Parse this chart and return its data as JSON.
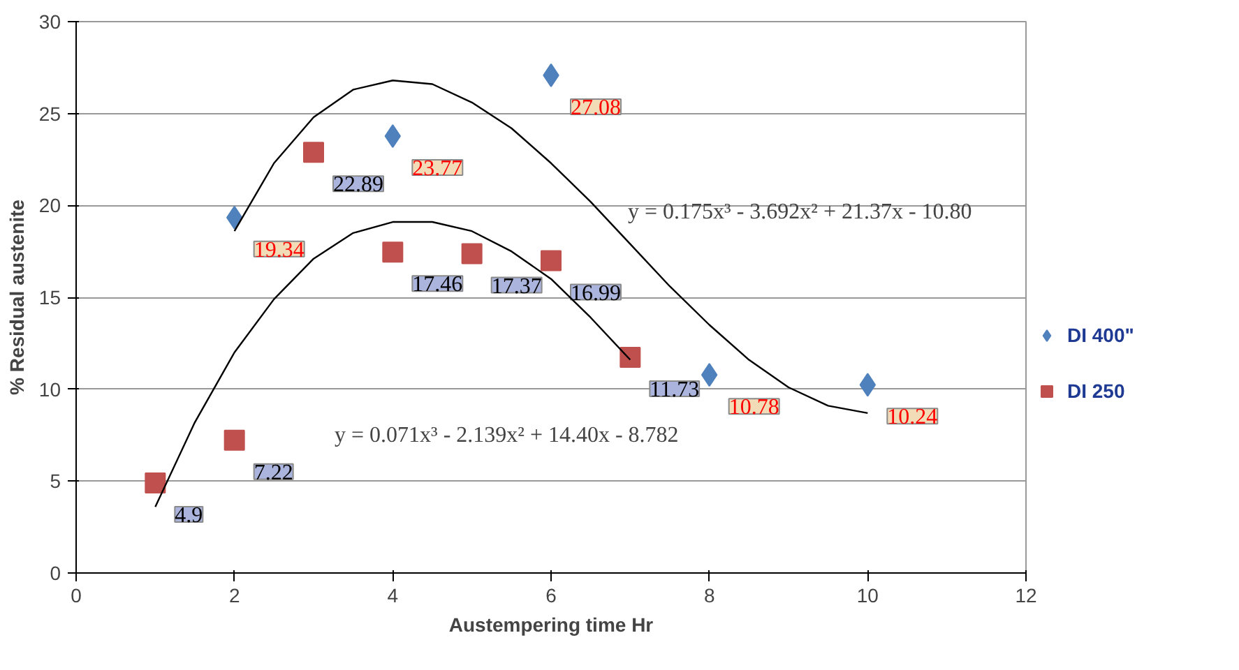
{
  "chart_data": {
    "type": "scatter",
    "xlabel": "Austempering time Hr",
    "ylabel": "% Residual austenite",
    "xlim": [
      0,
      12
    ],
    "xticks": [
      0,
      2,
      4,
      6,
      8,
      10,
      12
    ],
    "ylim": [
      0,
      30
    ],
    "yticks": [
      0,
      5,
      10,
      15,
      20,
      25,
      30
    ],
    "grid": "y",
    "legend": "right",
    "series": [
      {
        "name": "DI 400\"",
        "color": "#4f81bd",
        "marker": "diamond",
        "x": [
          2,
          4,
          6,
          8,
          10
        ],
        "values": [
          19.34,
          23.77,
          27.08,
          10.78,
          10.24
        ],
        "value_labels": [
          "19.34",
          "23.77",
          "27.08",
          "10.78",
          "10.24"
        ]
      },
      {
        "name": "DI 250",
        "color": "#c0504d",
        "marker": "square",
        "x": [
          1,
          2,
          3,
          4,
          5,
          6,
          7
        ],
        "values": [
          4.9,
          7.22,
          22.89,
          17.46,
          17.37,
          16.99,
          11.73
        ],
        "value_labels": [
          "4.9",
          "7.22",
          "22.89",
          "17.46",
          "17.37",
          "16.99",
          "11.73"
        ]
      },
      {
        "type": "line",
        "color": "#000000",
        "marker": "none",
        "x": [
          2,
          2.5,
          3,
          3.5,
          4,
          4.5,
          5,
          5.5,
          6,
          6.5,
          7,
          7.5,
          8,
          8.5,
          9,
          9.5,
          10
        ],
        "values": [
          18.6,
          22.3,
          24.8,
          26.3,
          26.8,
          26.6,
          25.6,
          24.2,
          22.3,
          20.2,
          17.9,
          15.6,
          13.5,
          11.6,
          10.1,
          9.1,
          8.7
        ]
      },
      {
        "type": "line",
        "color": "#000000",
        "marker": "none",
        "x": [
          1,
          1.5,
          2,
          2.5,
          3,
          3.5,
          4,
          4.5,
          5,
          5.5,
          6,
          6.5,
          7
        ],
        "values": [
          3.6,
          8.2,
          12.0,
          14.9,
          17.1,
          18.5,
          19.1,
          19.1,
          18.6,
          17.5,
          16.0,
          13.9,
          11.6
        ]
      }
    ],
    "annotations": [
      "y = 0.175x³ - 3.692x² + 21.37x - 10.80",
      "y = 0.071x³ - 2.139x² + 14.40x - 8.782"
    ]
  }
}
